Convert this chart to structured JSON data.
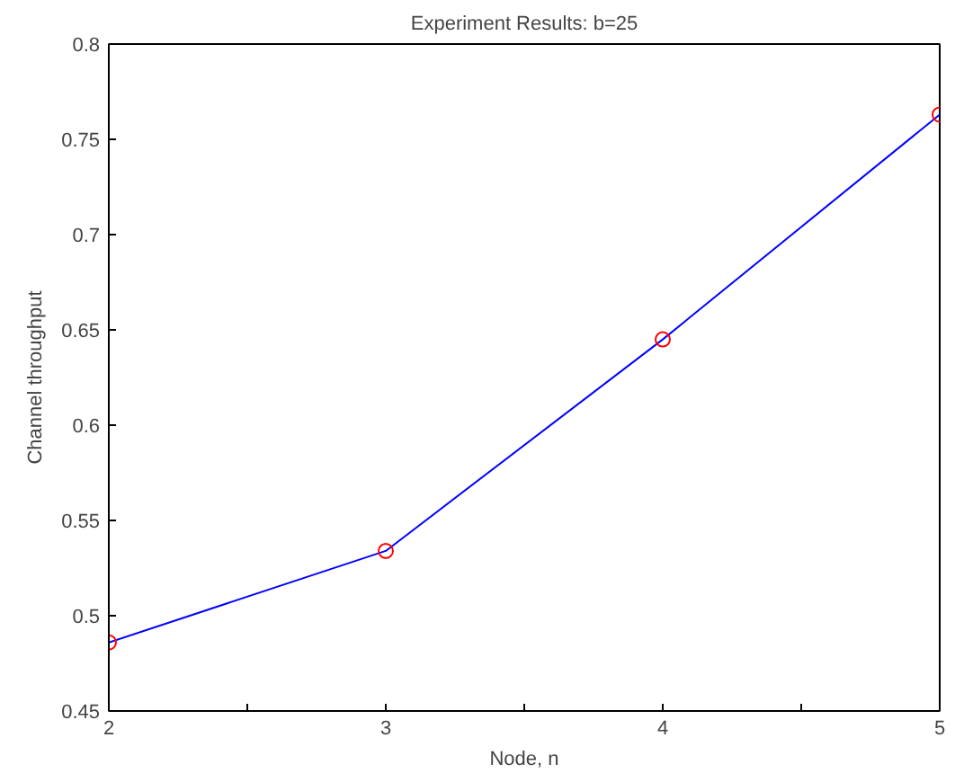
{
  "chart_data": {
    "type": "line",
    "title": "Experiment Results: b=25",
    "xlabel": "Node, n",
    "ylabel": "Channel throughput",
    "x": [
      2,
      3,
      4,
      5
    ],
    "series": [
      {
        "color": "#0000ff",
        "colors": [
          "#ff0000",
          "#ff0000",
          "#ff0000",
          "#ff0000"
        ],
        "values": [
          0.486,
          0.534,
          0.645,
          0.763
        ]
      }
    ],
    "xlim": [
      2,
      5
    ],
    "ylim": [
      0.45,
      0.8
    ],
    "xticks": [
      2,
      {
        "value": 2.5,
        "label": null
      },
      3,
      {
        "value": 3.5,
        "label": null
      },
      4,
      {
        "value": 4.5,
        "label": null
      },
      5
    ],
    "yticks": [
      0.45,
      0.5,
      0.55,
      0.6,
      0.65,
      0.7,
      0.75,
      0.8
    ],
    "marker": "circle",
    "line_style": "solid",
    "grid": false
  }
}
